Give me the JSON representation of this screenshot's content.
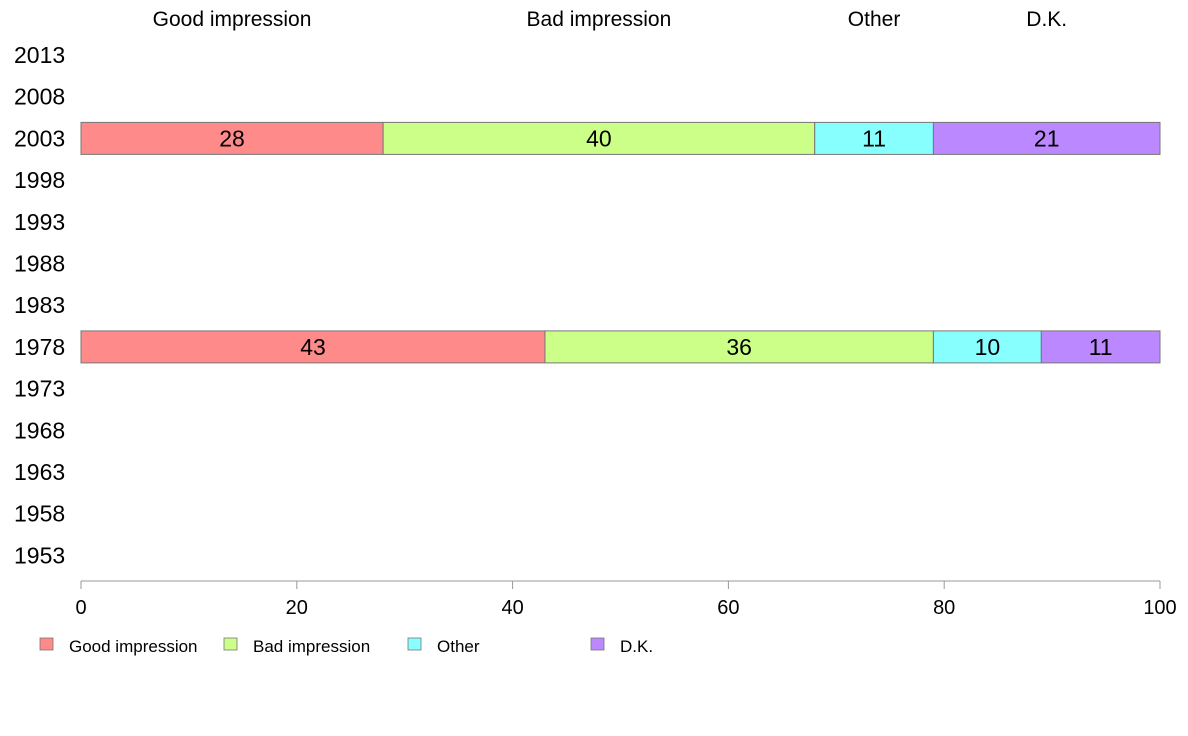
{
  "chart_data": {
    "type": "bar",
    "orientation": "horizontal",
    "stacked": true,
    "categories": [
      "2013",
      "2008",
      "2003",
      "1998",
      "1993",
      "1988",
      "1983",
      "1978",
      "1973",
      "1968",
      "1963",
      "1958",
      "1953"
    ],
    "series": [
      {
        "name": "Good impression",
        "color": "#ff8a8a",
        "values": [
          null,
          null,
          28,
          null,
          null,
          null,
          null,
          43,
          null,
          null,
          null,
          null,
          null
        ]
      },
      {
        "name": "Bad impression",
        "color": "#ccff88",
        "values": [
          null,
          null,
          40,
          null,
          null,
          null,
          null,
          36,
          null,
          null,
          null,
          null,
          null
        ]
      },
      {
        "name": "Other",
        "color": "#88ffff",
        "values": [
          null,
          null,
          11,
          null,
          null,
          null,
          null,
          10,
          null,
          null,
          null,
          null,
          null
        ]
      },
      {
        "name": "D.K.",
        "color": "#bb88ff",
        "values": [
          null,
          null,
          21,
          null,
          null,
          null,
          null,
          11,
          null,
          null,
          null,
          null,
          null
        ]
      }
    ],
    "top_labels": [
      "Good impression",
      "Bad impression",
      "Other",
      "D.K."
    ],
    "x_ticks": [
      "0",
      "20",
      "40",
      "60",
      "80",
      "100"
    ],
    "xlim": [
      0,
      100
    ],
    "legend_position": "bottom-left",
    "grid": false
  }
}
